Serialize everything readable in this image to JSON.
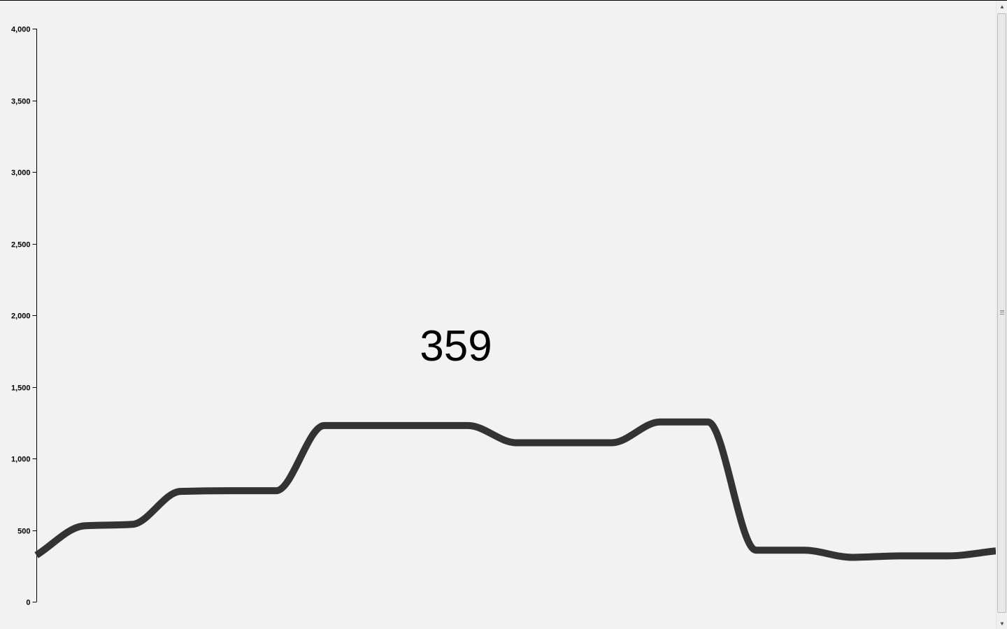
{
  "chart_data": {
    "type": "line",
    "title": "",
    "xlabel": "",
    "ylabel": "",
    "ylim": [
      0,
      4000
    ],
    "yticks": [
      0,
      500,
      1000,
      1500,
      2000,
      2500,
      3000,
      3500,
      4000
    ],
    "ytick_labels": [
      "0",
      "500",
      "1,000",
      "1,500",
      "2,000",
      "2,500",
      "3,000",
      "3,500",
      "4,000"
    ],
    "grid": false,
    "legend": false,
    "line_color": "#333333",
    "current_value": "359",
    "x": [
      0,
      1,
      2,
      3,
      4,
      5,
      6,
      7,
      8,
      9,
      10,
      11,
      12,
      13,
      14,
      15,
      16,
      17,
      18,
      19,
      20
    ],
    "values": [
      325,
      530,
      540,
      770,
      775,
      775,
      1230,
      1230,
      1230,
      1230,
      1110,
      1110,
      1110,
      1255,
      1255,
      360,
      360,
      310,
      320,
      320,
      355
    ]
  },
  "scrollbar": {
    "up_arrow_icon": "▲",
    "down_arrow_icon": "▼"
  }
}
